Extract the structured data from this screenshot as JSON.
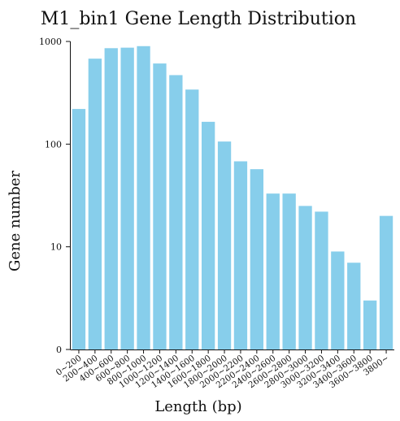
{
  "chart_data": {
    "type": "bar",
    "title": "M1_bin1 Gene Length Distribution",
    "xlabel": "Length (bp)",
    "ylabel": "Gene number",
    "yscale": "log",
    "ylim": [
      1,
      1000
    ],
    "yticks": [
      1,
      10,
      100,
      1000
    ],
    "ytick_labels": [
      "0",
      "10",
      "100",
      "1000"
    ],
    "bar_color": "#87CEEB",
    "grid": false,
    "categories": [
      "0~200",
      "200~400",
      "400~600",
      "600~800",
      "800~1000",
      "1000~1200",
      "1200~1400",
      "1400~1600",
      "1600~1800",
      "1800~2000",
      "2000~2200",
      "2200~2400",
      "2400~2600",
      "2600~2800",
      "2800~3000",
      "3000~3200",
      "3200~3400",
      "3400~3600",
      "3600~3800",
      "3800~"
    ],
    "values": [
      220,
      680,
      860,
      870,
      900,
      610,
      470,
      340,
      165,
      106,
      68,
      57,
      33,
      33,
      25,
      22,
      9,
      7,
      3,
      20
    ]
  }
}
